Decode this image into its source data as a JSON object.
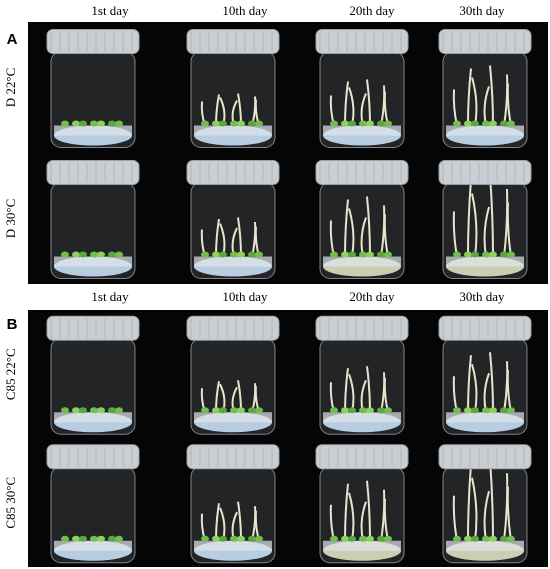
{
  "panels": [
    {
      "label": "A",
      "columns": [
        "1st day",
        "10th day",
        "20th day",
        "30th day"
      ],
      "rows": [
        "D 22°C",
        "D 30°C"
      ]
    },
    {
      "label": "B",
      "columns": [
        "1st day",
        "10th day",
        "20th day",
        "30th day"
      ],
      "rows": [
        "C85 22°C",
        "C85 30°C"
      ]
    }
  ]
}
